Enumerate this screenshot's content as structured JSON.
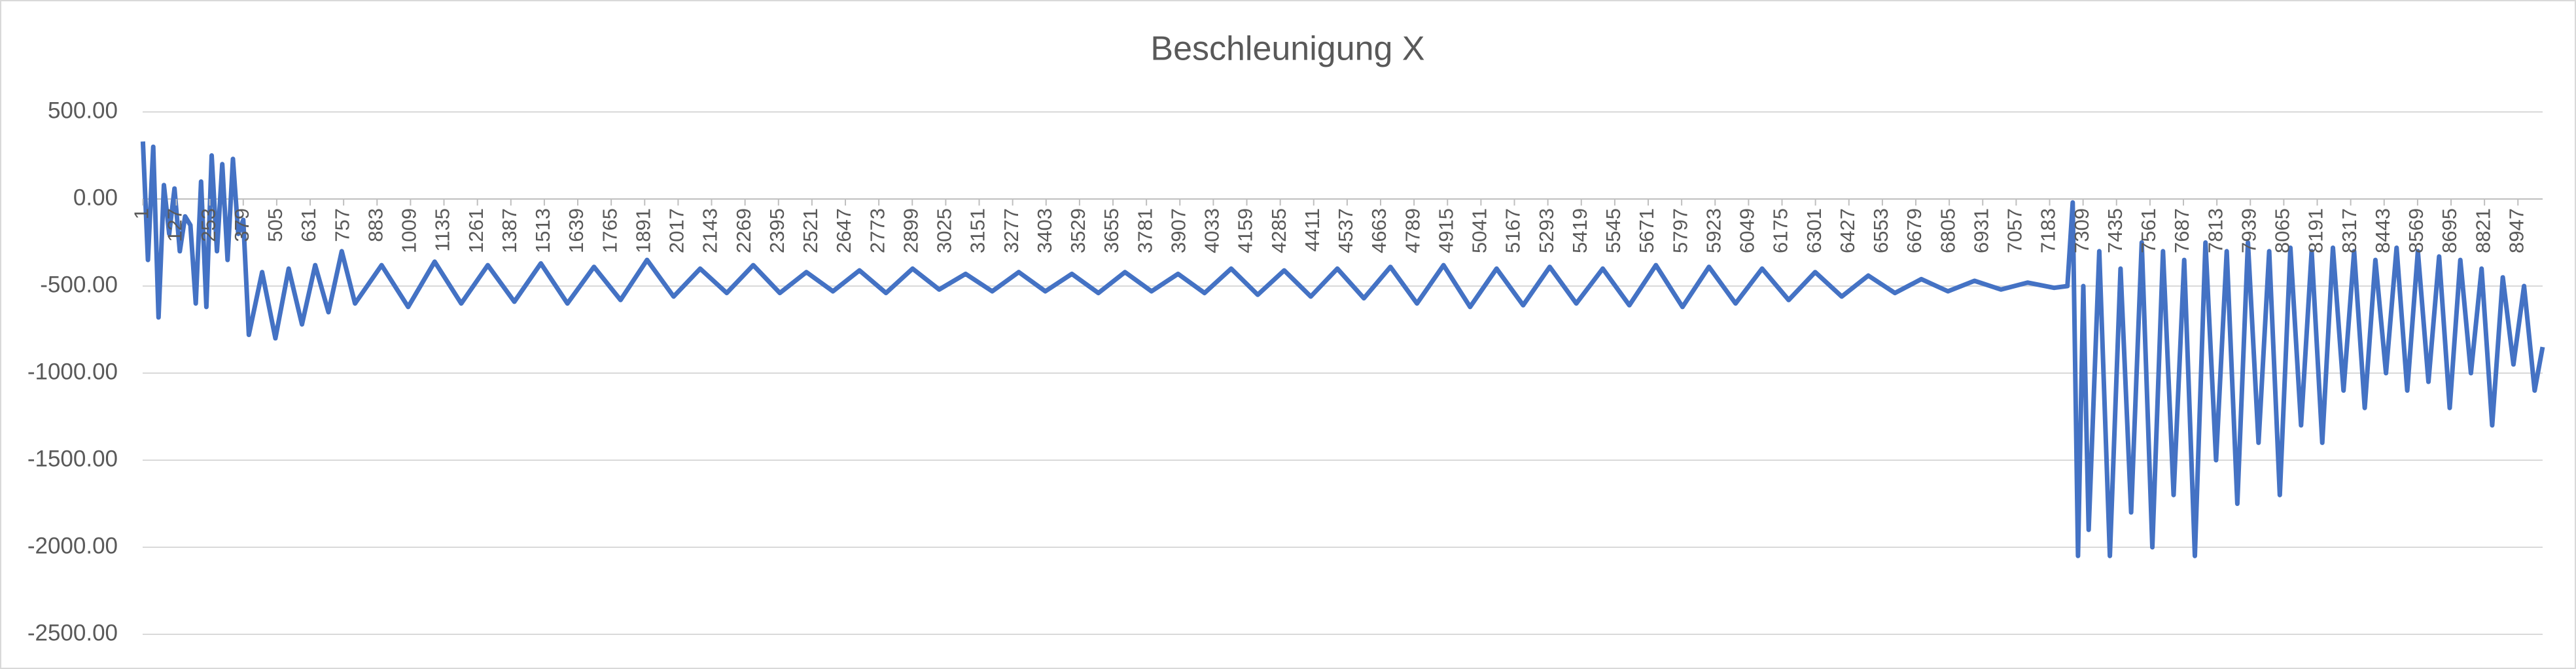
{
  "chart_data": {
    "type": "line",
    "title": "Beschleunigung X",
    "color": "#4472c4",
    "grid": true,
    "x": [
      1,
      20,
      40,
      60,
      80,
      100,
      120,
      140,
      160,
      180,
      200,
      220,
      240,
      260,
      280,
      300,
      320,
      340,
      360,
      379,
      400,
      450,
      500,
      550,
      600,
      650,
      700,
      750,
      800,
      900,
      1000,
      1100,
      1200,
      1300,
      1400,
      1500,
      1600,
      1700,
      1800,
      1900,
      2000,
      2100,
      2200,
      2300,
      2400,
      2500,
      2600,
      2700,
      2800,
      2900,
      3000,
      3100,
      3200,
      3300,
      3400,
      3500,
      3600,
      3700,
      3800,
      3900,
      4000,
      4100,
      4200,
      4300,
      4400,
      4500,
      4600,
      4700,
      4800,
      4900,
      5000,
      5100,
      5200,
      5300,
      5400,
      5500,
      5600,
      5700,
      5800,
      5900,
      6000,
      6100,
      6200,
      6300,
      6400,
      6500,
      6600,
      6700,
      6800,
      6900,
      7000,
      7100,
      7200,
      7250,
      7270,
      7290,
      7310,
      7330,
      7370,
      7410,
      7450,
      7490,
      7530,
      7570,
      7610,
      7650,
      7690,
      7730,
      7770,
      7810,
      7850,
      7890,
      7930,
      7970,
      8010,
      8050,
      8090,
      8130,
      8170,
      8210,
      8250,
      8290,
      8330,
      8370,
      8410,
      8450,
      8490,
      8530,
      8570,
      8610,
      8650,
      8690,
      8730,
      8770,
      8810,
      8850,
      8890,
      8930,
      8970,
      9010,
      9040
    ],
    "values": [
      330,
      -350,
      300,
      -680,
      80,
      -200,
      60,
      -300,
      -100,
      -150,
      -600,
      100,
      -620,
      250,
      -300,
      200,
      -350,
      230,
      -200,
      -120,
      -780,
      -420,
      -800,
      -400,
      -720,
      -380,
      -650,
      -300,
      -600,
      -380,
      -620,
      -360,
      -600,
      -380,
      -590,
      -370,
      -600,
      -390,
      -580,
      -350,
      -560,
      -400,
      -540,
      -380,
      -540,
      -420,
      -530,
      -410,
      -540,
      -400,
      -520,
      -430,
      -530,
      -420,
      -530,
      -430,
      -540,
      -420,
      -530,
      -430,
      -540,
      -400,
      -550,
      -410,
      -560,
      -400,
      -570,
      -390,
      -600,
      -380,
      -620,
      -400,
      -610,
      -390,
      -600,
      -400,
      -610,
      -380,
      -620,
      -390,
      -600,
      -400,
      -580,
      -420,
      -560,
      -440,
      -540,
      -460,
      -530,
      -470,
      -520,
      -480,
      -510,
      -500,
      -20,
      -2050,
      -500,
      -1900,
      -300,
      -2050,
      -400,
      -1800,
      -250,
      -2000,
      -300,
      -1700,
      -350,
      -2050,
      -250,
      -1500,
      -300,
      -1750,
      -250,
      -1400,
      -300,
      -1700,
      -280,
      -1300,
      -300,
      -1400,
      -280,
      -1100,
      -300,
      -1200,
      -350,
      -1000,
      -280,
      -1100,
      -300,
      -1050,
      -330,
      -1200,
      -350,
      -1000,
      -400,
      -1300,
      -450,
      -950,
      -500,
      -1100,
      -850
    ],
    "xlim": [
      0,
      9040
    ],
    "xticks": [
      1,
      127,
      253,
      379,
      505,
      631,
      757,
      883,
      1009,
      1135,
      1261,
      1387,
      1513,
      1639,
      1765,
      1891,
      2017,
      2143,
      2269,
      2395,
      2521,
      2647,
      2773,
      2899,
      3025,
      3151,
      3277,
      3403,
      3529,
      3655,
      3781,
      3907,
      4033,
      4159,
      4285,
      4411,
      4537,
      4663,
      4789,
      4915,
      5041,
      5167,
      5293,
      5419,
      5545,
      5671,
      5797,
      5923,
      6049,
      6175,
      6301,
      6427,
      6553,
      6679,
      6805,
      6931,
      7057,
      7183,
      7309,
      7435,
      7561,
      7687,
      7813,
      7939,
      8065,
      8191,
      8317,
      8443,
      8569,
      8695,
      8821,
      8947
    ],
    "ylim": [
      -2500,
      500
    ],
    "yticks": [
      {
        "value": 500,
        "label": "500.00"
      },
      {
        "value": 0,
        "label": "0.00"
      },
      {
        "value": -500,
        "label": "-500.00"
      },
      {
        "value": -1000,
        "label": "-1000.00"
      },
      {
        "value": -1500,
        "label": "-1500.00"
      },
      {
        "value": -2000,
        "label": "-2000.00"
      },
      {
        "value": -2500,
        "label": "-2500.00"
      }
    ]
  }
}
